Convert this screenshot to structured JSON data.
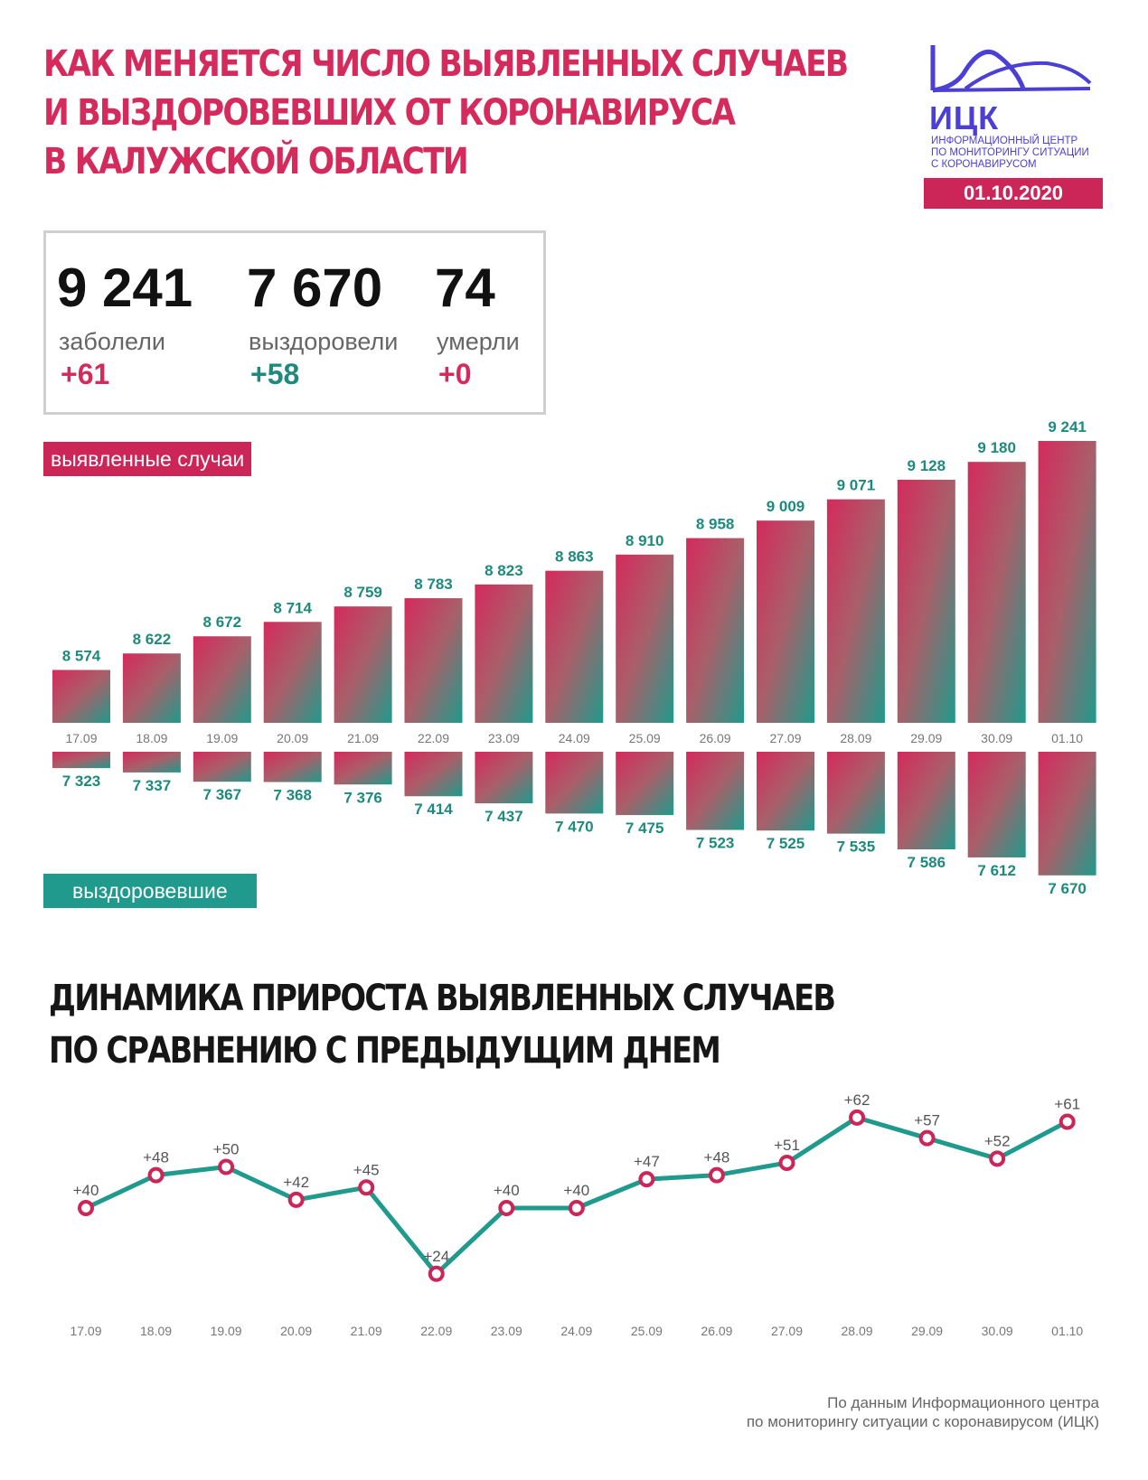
{
  "title_lines": [
    "КАК МЕНЯЕТСЯ ЧИСЛО ВЫЯВЛЕННЫХ СЛУЧАЕВ",
    "И ВЫЗДОРОВЕВШИХ ОТ КОРОНАВИРУСА",
    "В КАЛУЖСКОЙ ОБЛАСТИ"
  ],
  "logo": {
    "abbr": "ИЦК",
    "subtitle_lines": [
      "ИНФОРМАЦИОННЫЙ ЦЕНТР",
      "ПО МОНИТОРИНГУ СИТУАЦИИ",
      "С КОРОНАВИРУСОМ"
    ],
    "icon": "mountain-wave-logo-icon"
  },
  "date": "01.10.2020",
  "stats": {
    "sick": {
      "value": "9 241",
      "label": "заболели",
      "delta": "+61"
    },
    "recovered": {
      "value": "7 670",
      "label": "выздоровели",
      "delta": "+58"
    },
    "died": {
      "value": "74",
      "label": "умерли",
      "delta": "+0"
    }
  },
  "legend": {
    "cases": "выявленные случаи",
    "recovered": "выздоровевшие"
  },
  "section_title_lines": [
    "ДИНАМИКА ПРИРОСТА ВЫЯВЛЕННЫХ СЛУЧАЕВ",
    "ПО СРАВНЕНИЮ С ПРЕДЫДУЩИМ ДНЕМ"
  ],
  "footer_lines": [
    "По данным Информационного центра",
    "по мониторингу ситуации с коронавирусом (ИЦК)"
  ],
  "colors": {
    "accent": "#d42a5c",
    "teal": "#1f9a8c",
    "logo_blue": "#4b3fd6",
    "label_teal": "#1e8a7e"
  },
  "chart_data": [
    {
      "type": "bar",
      "categories": [
        "17.09",
        "18.09",
        "19.09",
        "20.09",
        "21.09",
        "22.09",
        "23.09",
        "24.09",
        "25.09",
        "26.09",
        "27.09",
        "28.09",
        "29.09",
        "30.09",
        "01.10"
      ],
      "series": [
        {
          "name": "выявленные случаи",
          "values": [
            8574,
            8622,
            8672,
            8714,
            8759,
            8783,
            8823,
            8863,
            8910,
            8958,
            9009,
            9071,
            9128,
            9180,
            9241
          ],
          "labels": [
            "8 574",
            "8 622",
            "8 672",
            "8 714",
            "8 759",
            "8 783",
            "8 823",
            "8 863",
            "8 910",
            "8 958",
            "9 009",
            "9 071",
            "9 128",
            "9 180",
            "9 241"
          ]
        },
        {
          "name": "выздоровевшие",
          "values": [
            7323,
            7337,
            7367,
            7368,
            7376,
            7414,
            7437,
            7470,
            7475,
            7523,
            7525,
            7535,
            7586,
            7612,
            7670
          ],
          "labels": [
            "7 323",
            "7 337",
            "7 367",
            "7 368",
            "7 376",
            "7 414",
            "7 437",
            "7 470",
            "7 475",
            "7 523",
            "7 525",
            "7 535",
            "7 586",
            "7 612",
            "7 670"
          ]
        }
      ],
      "legend": "left"
    },
    {
      "type": "line",
      "title": "ДИНАМИКА ПРИРОСТА ВЫЯВЛЕННЫХ СЛУЧАЕВ ПО СРАВНЕНИЮ С ПРЕДЫДУЩИМ ДНЕМ",
      "categories": [
        "17.09",
        "18.09",
        "19.09",
        "20.09",
        "21.09",
        "22.09",
        "23.09",
        "24.09",
        "25.09",
        "26.09",
        "27.09",
        "28.09",
        "29.09",
        "30.09",
        "01.10"
      ],
      "values": [
        40,
        48,
        50,
        42,
        45,
        24,
        40,
        40,
        47,
        48,
        51,
        62,
        57,
        52,
        61
      ],
      "labels": [
        "+40",
        "+48",
        "+50",
        "+42",
        "+45",
        "+24",
        "+40",
        "+40",
        "+47",
        "+48",
        "+51",
        "+62",
        "+57",
        "+52",
        "+61"
      ],
      "grid": false
    }
  ]
}
